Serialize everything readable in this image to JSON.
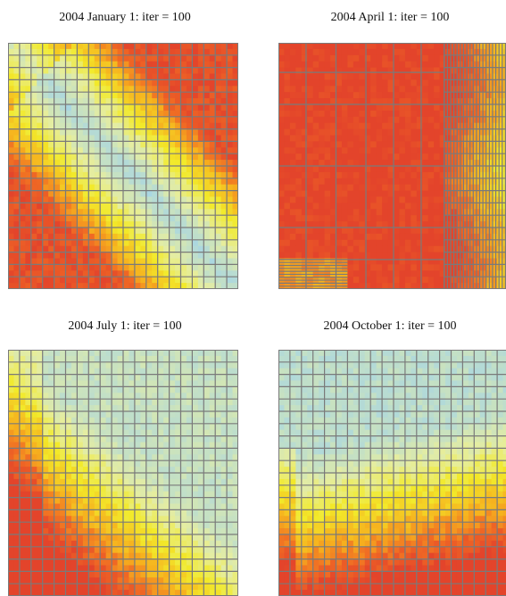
{
  "figure": {
    "panels": [
      {
        "title": "2004 January 1: iter = 100",
        "pattern": "january"
      },
      {
        "title": "2004 April 1: iter = 100",
        "pattern": "april"
      },
      {
        "title": "2004 July 1: iter = 100",
        "pattern": "july"
      },
      {
        "title": "2004 October 1: iter = 100",
        "pattern": "october"
      }
    ],
    "colors": {
      "low": "#a9d6e2",
      "mid_low": "#e5eda1",
      "mid": "#f2ea2a",
      "mid_high": "#f6b11e",
      "high": "#f06a24",
      "max": "#e3442b",
      "grid_line": "#7a7a7a"
    }
  }
}
